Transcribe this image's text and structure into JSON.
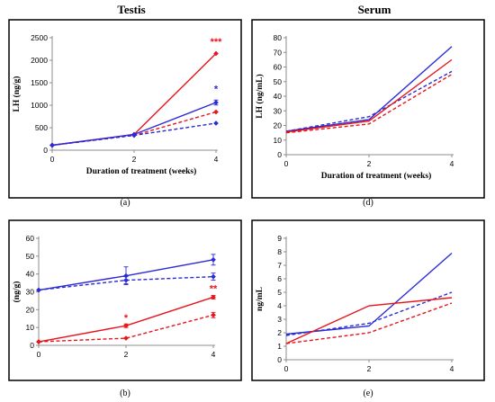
{
  "column_titles": [
    "Testis",
    "Serum"
  ],
  "colors": {
    "red": "#e8141b",
    "blue": "#2a2ad8",
    "axis": "#8c8c8c",
    "frame": "#000000"
  },
  "chart_data": [
    {
      "id": "a",
      "panel_label": "(a)",
      "type": "line",
      "ylabel": "LH (ng/g)",
      "xlabel": "Duration of treatment (weeks)",
      "x": [
        0,
        2,
        4
      ],
      "xticks": [
        "0",
        "2",
        "4"
      ],
      "ylim": [
        0,
        2500
      ],
      "yticks": [
        "0",
        "500",
        "1000",
        "1500",
        "2000",
        "2500"
      ],
      "grid": false,
      "series": [
        {
          "color": "red",
          "dashed": false,
          "values": [
            110,
            350,
            2150
          ],
          "markers": true,
          "errors": [
            0,
            0,
            0
          ]
        },
        {
          "color": "red",
          "dashed": true,
          "values": [
            110,
            330,
            850
          ],
          "markers": true,
          "errors": [
            0,
            0,
            0
          ]
        },
        {
          "color": "blue",
          "dashed": false,
          "values": [
            110,
            350,
            1060
          ],
          "markers": true,
          "errors": [
            0,
            0,
            55
          ]
        },
        {
          "color": "blue",
          "dashed": true,
          "values": [
            110,
            330,
            600
          ],
          "markers": true,
          "errors": [
            0,
            0,
            0
          ]
        }
      ],
      "annotations": [
        {
          "text": "***",
          "color": "red",
          "x": 4,
          "y": 2340
        },
        {
          "text": "*",
          "color": "blue",
          "x": 4,
          "y": 1290
        }
      ]
    },
    {
      "id": "d",
      "panel_label": "(d)",
      "type": "line",
      "ylabel": "LH (ng/mL)",
      "xlabel": "Duration of treatment (weeks)",
      "x": [
        0,
        2,
        4
      ],
      "xticks": [
        "0",
        "2",
        "4"
      ],
      "ylim": [
        0,
        80
      ],
      "yticks": [
        "0",
        "10",
        "20",
        "30",
        "40",
        "50",
        "60",
        "70",
        "80"
      ],
      "grid": false,
      "series": [
        {
          "color": "blue",
          "dashed": false,
          "values": [
            16,
            24,
            74
          ],
          "markers": false
        },
        {
          "color": "blue",
          "dashed": true,
          "values": [
            16,
            26,
            57
          ],
          "markers": false
        },
        {
          "color": "red",
          "dashed": false,
          "values": [
            15.5,
            23,
            65
          ],
          "markers": false
        },
        {
          "color": "red",
          "dashed": true,
          "values": [
            15,
            21,
            55
          ],
          "markers": false
        }
      ],
      "annotations": []
    },
    {
      "id": "b",
      "panel_label": "(b)",
      "type": "line",
      "ylabel": "(ng/g)",
      "xlabel": "",
      "x": [
        0,
        2,
        4
      ],
      "xticks": [
        "0",
        "2",
        "4"
      ],
      "ylim": [
        0,
        60
      ],
      "yticks": [
        "0",
        "10",
        "20",
        "30",
        "40",
        "50",
        "60"
      ],
      "grid": false,
      "series": [
        {
          "color": "blue",
          "dashed": false,
          "values": [
            31,
            39,
            48
          ],
          "markers": true,
          "errors": [
            0,
            5,
            3
          ]
        },
        {
          "color": "blue",
          "dashed": true,
          "values": [
            31,
            36.5,
            38.5
          ],
          "markers": true,
          "errors": [
            0,
            2,
            2
          ]
        },
        {
          "color": "red",
          "dashed": false,
          "values": [
            2,
            11,
            27
          ],
          "markers": true,
          "errors": [
            0,
            1,
            1
          ]
        },
        {
          "color": "red",
          "dashed": true,
          "values": [
            2,
            4,
            17
          ],
          "markers": true,
          "errors": [
            0,
            0,
            1.5
          ]
        }
      ],
      "annotations": [
        {
          "text": "*",
          "color": "red",
          "x": 2,
          "y": 13.5
        },
        {
          "text": "**",
          "color": "red",
          "x": 4,
          "y": 30
        }
      ]
    },
    {
      "id": "e",
      "panel_label": "(e)",
      "type": "line",
      "ylabel": "ng/mL",
      "xlabel": "",
      "x": [
        0,
        2,
        4
      ],
      "xticks": [
        "0",
        "2",
        "4"
      ],
      "ylim": [
        0,
        9
      ],
      "yticks": [
        "0",
        "1",
        "2",
        "3",
        "4",
        "5",
        "6",
        "7",
        "8",
        "9"
      ],
      "grid": false,
      "series": [
        {
          "color": "blue",
          "dashed": false,
          "values": [
            1.9,
            2.5,
            7.9
          ],
          "markers": false
        },
        {
          "color": "blue",
          "dashed": true,
          "values": [
            1.8,
            2.7,
            5.0
          ],
          "markers": false
        },
        {
          "color": "red",
          "dashed": false,
          "values": [
            1.2,
            4.0,
            4.6
          ],
          "markers": false
        },
        {
          "color": "red",
          "dashed": true,
          "values": [
            1.2,
            2.0,
            4.2
          ],
          "markers": false
        }
      ],
      "annotations": []
    }
  ]
}
